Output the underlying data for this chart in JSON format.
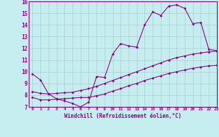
{
  "title": "",
  "xlabel": "Windchill (Refroidissement éolien,°C)",
  "background_color": "#c6eef0",
  "line_color": "#880088",
  "grid_color": "#aacccc",
  "ylim": [
    7,
    16
  ],
  "xlim": [
    -0.5,
    23
  ],
  "yticks": [
    7,
    8,
    9,
    10,
    11,
    12,
    13,
    14,
    15,
    16
  ],
  "xticks": [
    0,
    1,
    2,
    3,
    4,
    5,
    6,
    7,
    8,
    9,
    10,
    11,
    12,
    13,
    14,
    15,
    16,
    17,
    18,
    19,
    20,
    21,
    22,
    23
  ],
  "line1_x": [
    0,
    1,
    2,
    3,
    4,
    5,
    6,
    7,
    8,
    9,
    10,
    11,
    12,
    13,
    14,
    15,
    16,
    17,
    18,
    19,
    20,
    21,
    22,
    23
  ],
  "line1_y": [
    9.8,
    9.3,
    8.1,
    7.7,
    7.5,
    7.3,
    7.0,
    7.4,
    9.6,
    9.5,
    11.5,
    12.4,
    12.2,
    12.1,
    14.0,
    15.1,
    14.8,
    15.6,
    15.7,
    15.4,
    14.1,
    14.2,
    11.9,
    11.8
  ],
  "line2_x": [
    0,
    1,
    2,
    3,
    4,
    5,
    6,
    7,
    8,
    9,
    10,
    11,
    12,
    13,
    14,
    15,
    16,
    17,
    18,
    19,
    20,
    21,
    22,
    23
  ],
  "line2_y": [
    8.3,
    8.15,
    8.1,
    8.15,
    8.2,
    8.25,
    8.4,
    8.55,
    8.75,
    9.0,
    9.25,
    9.5,
    9.75,
    10.0,
    10.25,
    10.5,
    10.75,
    11.0,
    11.2,
    11.35,
    11.5,
    11.6,
    11.7,
    11.75
  ],
  "line3_x": [
    0,
    1,
    2,
    3,
    4,
    5,
    6,
    7,
    8,
    9,
    10,
    11,
    12,
    13,
    14,
    15,
    16,
    17,
    18,
    19,
    20,
    21,
    22,
    23
  ],
  "line3_y": [
    7.8,
    7.6,
    7.6,
    7.65,
    7.7,
    7.75,
    7.8,
    7.8,
    7.95,
    8.1,
    8.35,
    8.55,
    8.8,
    9.0,
    9.25,
    9.45,
    9.65,
    9.85,
    10.0,
    10.15,
    10.3,
    10.4,
    10.5,
    10.55
  ],
  "marker": "D",
  "markersize": 2,
  "linewidth": 0.8
}
